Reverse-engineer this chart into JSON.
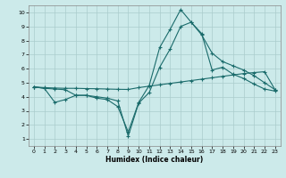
{
  "title": "",
  "xlabel": "Humidex (Indice chaleur)",
  "xlim": [
    -0.5,
    23.5
  ],
  "ylim": [
    0.5,
    10.5
  ],
  "xticks": [
    0,
    1,
    2,
    3,
    4,
    5,
    6,
    7,
    8,
    9,
    10,
    11,
    12,
    13,
    14,
    15,
    16,
    17,
    18,
    19,
    20,
    21,
    22,
    23
  ],
  "yticks": [
    1,
    2,
    3,
    4,
    5,
    6,
    7,
    8,
    9,
    10
  ],
  "bg_color": "#cceaea",
  "grid_color": "#aacccc",
  "line_color": "#1a6b6b",
  "line1_x": [
    0,
    1,
    2,
    3,
    4,
    5,
    6,
    7,
    8,
    9,
    10,
    11,
    12,
    13,
    14,
    15,
    16,
    17,
    18,
    19,
    20,
    21,
    22,
    23
  ],
  "line1_y": [
    4.7,
    4.6,
    3.6,
    3.8,
    4.1,
    4.1,
    3.9,
    3.8,
    3.3,
    1.5,
    3.6,
    4.8,
    7.5,
    8.8,
    10.2,
    9.3,
    8.4,
    7.1,
    6.5,
    6.2,
    5.9,
    5.5,
    5.0,
    4.5
  ],
  "line2_x": [
    0,
    1,
    2,
    3,
    4,
    5,
    6,
    7,
    8,
    9,
    10,
    11,
    12,
    13,
    14,
    15,
    16,
    17,
    18,
    19,
    20,
    21,
    22,
    23
  ],
  "line2_y": [
    4.7,
    4.65,
    4.62,
    4.6,
    4.6,
    4.58,
    4.57,
    4.55,
    4.53,
    4.52,
    4.65,
    4.75,
    4.85,
    4.95,
    5.05,
    5.15,
    5.25,
    5.35,
    5.45,
    5.55,
    5.65,
    5.72,
    5.78,
    4.5
  ],
  "line3_x": [
    0,
    1,
    2,
    3,
    4,
    5,
    6,
    7,
    8,
    9,
    10,
    11,
    12,
    13,
    14,
    15,
    16,
    17,
    18,
    19,
    20,
    21,
    22,
    23
  ],
  "line3_y": [
    4.7,
    4.6,
    4.55,
    4.5,
    4.1,
    4.1,
    4.0,
    3.9,
    3.7,
    1.2,
    3.55,
    4.3,
    6.1,
    7.4,
    9.0,
    9.3,
    8.5,
    5.9,
    6.1,
    5.6,
    5.3,
    4.9,
    4.55,
    4.4
  ]
}
